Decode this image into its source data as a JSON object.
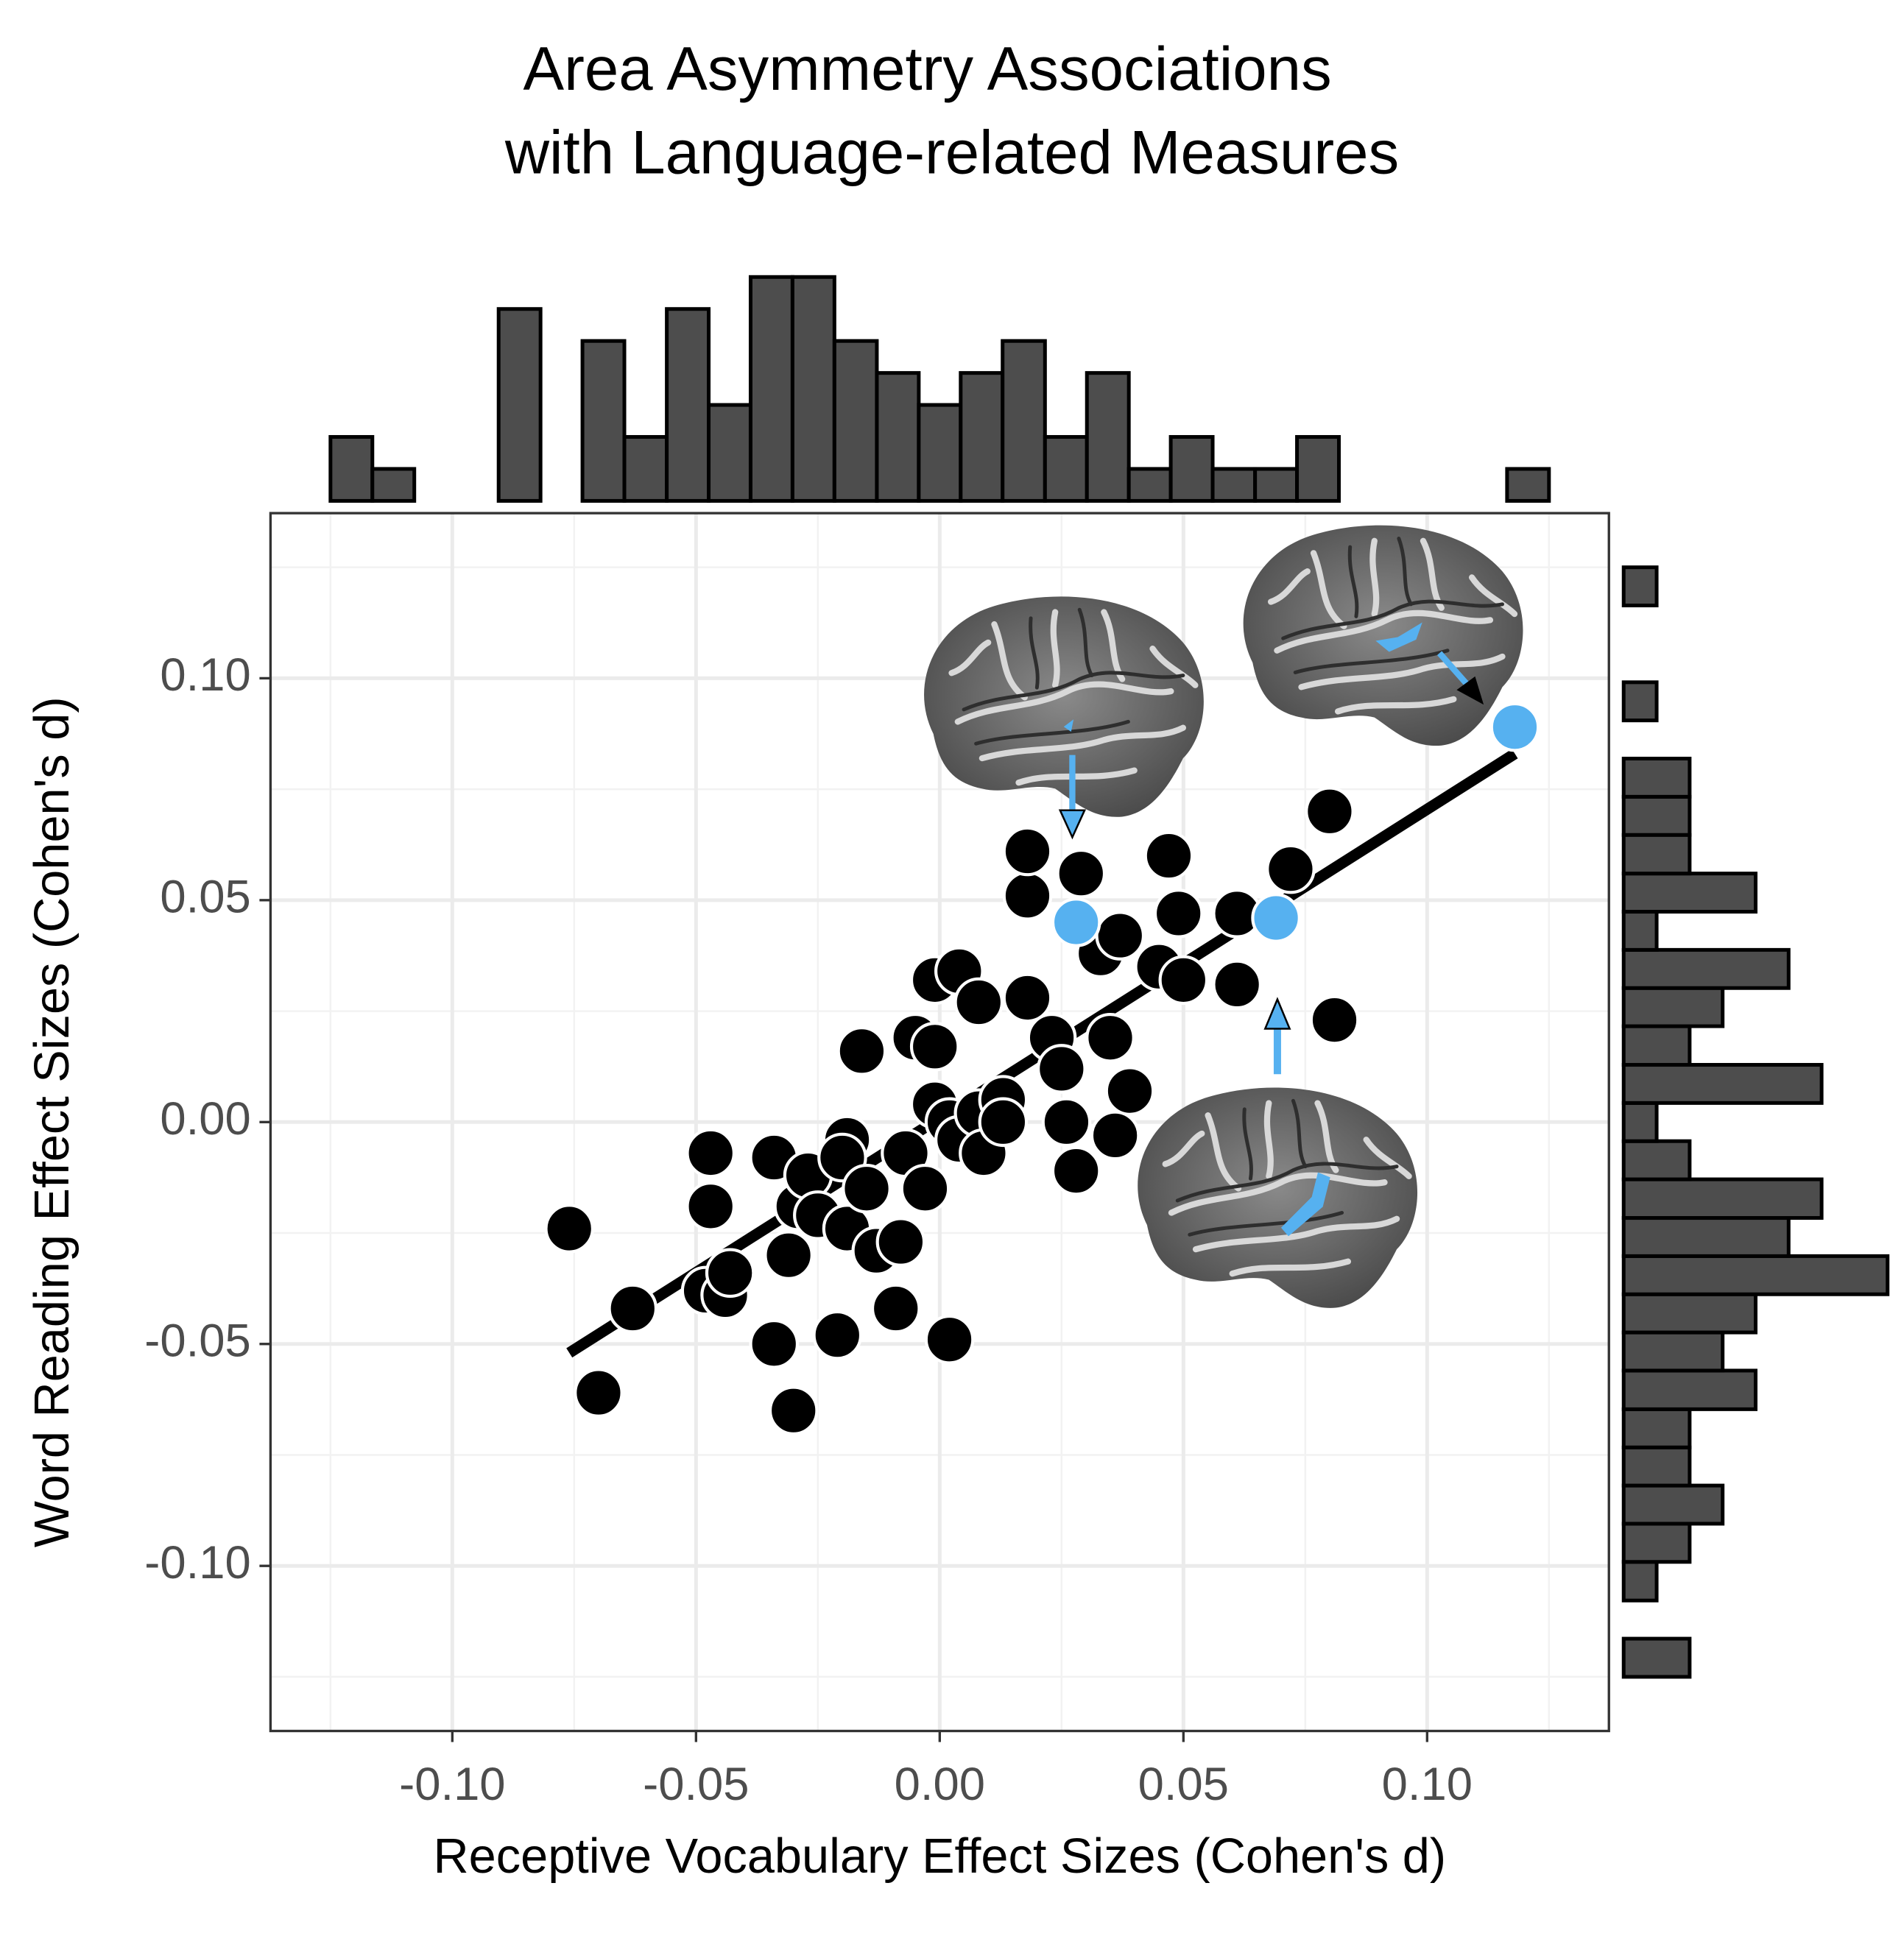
{
  "chart_data": [
    {
      "type": "scatter",
      "title": [
        "Area Asymmetry Associations",
        "with Language-related Measures"
      ],
      "x_label": "Receptive Vocabulary Effect Sizes (Cohen's d)",
      "y_label": "Word Reading Effect Sizes (Cohen's d)",
      "xlim": [
        -0.1373,
        0.1373
      ],
      "ylim": [
        -0.1372,
        0.1372
      ],
      "xticks": [
        {
          "value": -0.1,
          "label": "-0.10"
        },
        {
          "value": -0.05,
          "label": "-0.05"
        },
        {
          "value": 0,
          "label": "0.00"
        },
        {
          "value": 0.05,
          "label": "0.05"
        },
        {
          "value": 0.1,
          "label": "0.10"
        }
      ],
      "yticks": [
        {
          "value": -0.1,
          "label": "-0.10"
        },
        {
          "value": -0.05,
          "label": "-0.05"
        },
        {
          "value": 0,
          "label": "0.00"
        },
        {
          "value": 0.05,
          "label": "0.05"
        },
        {
          "value": 0.1,
          "label": "0.10"
        }
      ],
      "grid": true,
      "series": [
        {
          "color": "#000000",
          "x": [
            -0.076,
            -0.07,
            -0.063,
            -0.047,
            -0.047,
            -0.048,
            -0.044,
            -0.043,
            -0.034,
            -0.031,
            -0.034,
            -0.03,
            -0.029,
            -0.027,
            -0.025,
            -0.019,
            -0.02,
            -0.019,
            -0.021,
            -0.015,
            -0.016,
            -0.013,
            -0.008,
            -0.009,
            -0.007,
            -0.003,
            -0.005,
            -0.001,
            -0.001,
            0.004,
            0.008,
            0.002,
            -0.001,
            0.002,
            0.004,
            0.008,
            0.009,
            0.013,
            0.013,
            0.018,
            0.018,
            0.018,
            0.023,
            0.025,
            0.026,
            0.028,
            0.029,
            0.033,
            0.037,
            0.035,
            0.036,
            0.039,
            0.047,
            0.049,
            0.045,
            0.05,
            0.061,
            0.061,
            0.072,
            0.08,
            0.081
          ],
          "y": [
            -0.024,
            -0.061,
            -0.042,
            -0.007,
            -0.019,
            -0.038,
            -0.039,
            -0.034,
            -0.008,
            -0.03,
            -0.05,
            -0.065,
            -0.019,
            -0.012,
            -0.021,
            -0.004,
            -0.008,
            -0.024,
            -0.048,
            -0.015,
            0.016,
            -0.029,
            -0.027,
            -0.042,
            -0.007,
            -0.015,
            0.019,
            0.017,
            0.032,
            0.034,
            0.027,
            -0.049,
            0.004,
            0.0,
            -0.004,
            0.002,
            -0.007,
            0.005,
            0.0,
            0.028,
            0.051,
            0.061,
            0.019,
            0.012,
            0.0,
            -0.011,
            0.056,
            0.038,
            0.042,
            0.019,
            -0.003,
            0.007,
            0.06,
            0.047,
            0.035,
            0.032,
            0.031,
            0.047,
            0.057,
            0.07,
            0.023
          ]
        },
        {
          "color": "#56b1f0",
          "x": [
            0.028,
            0.069,
            0.118
          ],
          "y": [
            0.045,
            0.046,
            0.089
          ]
        }
      ],
      "trend_line": {
        "color": "#000000",
        "x": [
          -0.076,
          0.118
        ],
        "y": [
          -0.052,
          0.083
        ]
      }
    },
    {
      "type": "histogram",
      "orientation": "vertical",
      "color": "#4d4d4d",
      "edgecolor": "#000000",
      "bins": [
        -0.125,
        -0.1164,
        -0.1078,
        -0.0991,
        -0.0905,
        -0.0819,
        -0.0733,
        -0.0647,
        -0.056,
        -0.0474,
        -0.0388,
        -0.0302,
        -0.0216,
        -0.0129,
        -0.0043,
        0.0043,
        0.0129,
        0.0216,
        0.0302,
        0.0388,
        0.0474,
        0.056,
        0.0647,
        0.0733,
        0.0819,
        0.0905,
        0.0991,
        0.1078,
        0.1164,
        0.125
      ],
      "counts": [
        2,
        1,
        0,
        0,
        6,
        0,
        5,
        2,
        6,
        3,
        7,
        7,
        5,
        4,
        3,
        4,
        5,
        2,
        4,
        1,
        2,
        1,
        1,
        2,
        0,
        0,
        0,
        0,
        1
      ],
      "ylim": [
        0,
        7.6
      ]
    },
    {
      "type": "histogram",
      "orientation": "horizontal",
      "color": "#4d4d4d",
      "edgecolor": "#000000",
      "bins": [
        -0.125,
        -0.1164,
        -0.1078,
        -0.0991,
        -0.0905,
        -0.0819,
        -0.0733,
        -0.0647,
        -0.056,
        -0.0474,
        -0.0388,
        -0.0302,
        -0.0216,
        -0.0129,
        -0.0043,
        0.0043,
        0.0129,
        0.0216,
        0.0302,
        0.0388,
        0.0474,
        0.056,
        0.0647,
        0.0733,
        0.0819,
        0.0905,
        0.0991,
        0.1078,
        0.1164,
        0.125
      ],
      "counts": [
        2,
        0,
        1,
        2,
        3,
        2,
        2,
        4,
        3,
        4,
        8,
        5,
        6,
        2,
        1,
        6,
        2,
        3,
        5,
        1,
        4,
        2,
        2,
        2,
        0,
        1,
        0,
        0,
        1
      ],
      "xlim": [
        0,
        8.3
      ]
    }
  ]
}
